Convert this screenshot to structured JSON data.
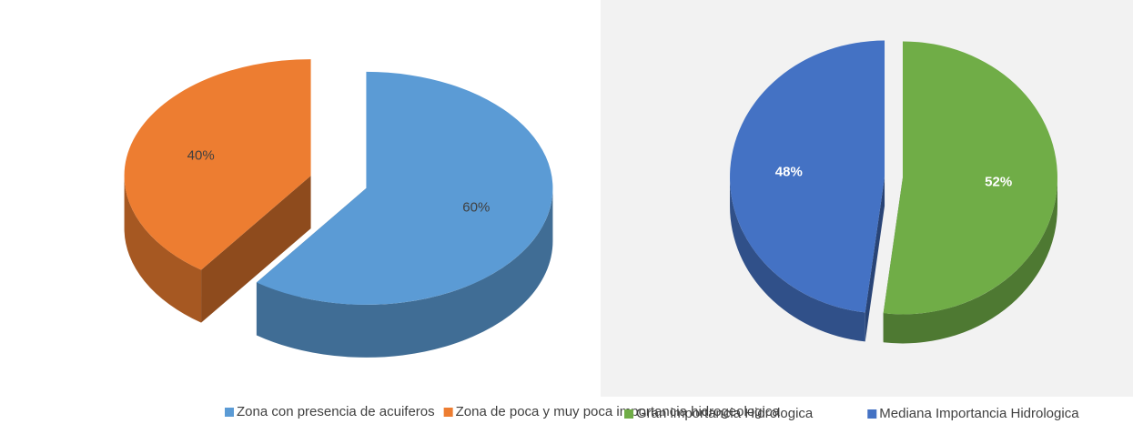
{
  "chart_data": [
    {
      "type": "pie",
      "categories": [
        "Zona con presencia de acuiferos",
        "Zona de poca y muy poca importancia hidrogeologica"
      ],
      "values": [
        60,
        40
      ],
      "value_labels": [
        "60%",
        "40%"
      ],
      "colors": [
        "#5b9bd5",
        "#ed7d31"
      ],
      "legend": "bottom"
    },
    {
      "type": "pie",
      "categories": [
        "Gran importancia Hidrologica",
        "Mediana Importancia Hidrologica"
      ],
      "values": [
        52,
        48
      ],
      "value_labels": [
        "52%",
        "48%"
      ],
      "colors": [
        "#70ad47",
        "#4472c4"
      ],
      "legend": "bottom"
    }
  ]
}
